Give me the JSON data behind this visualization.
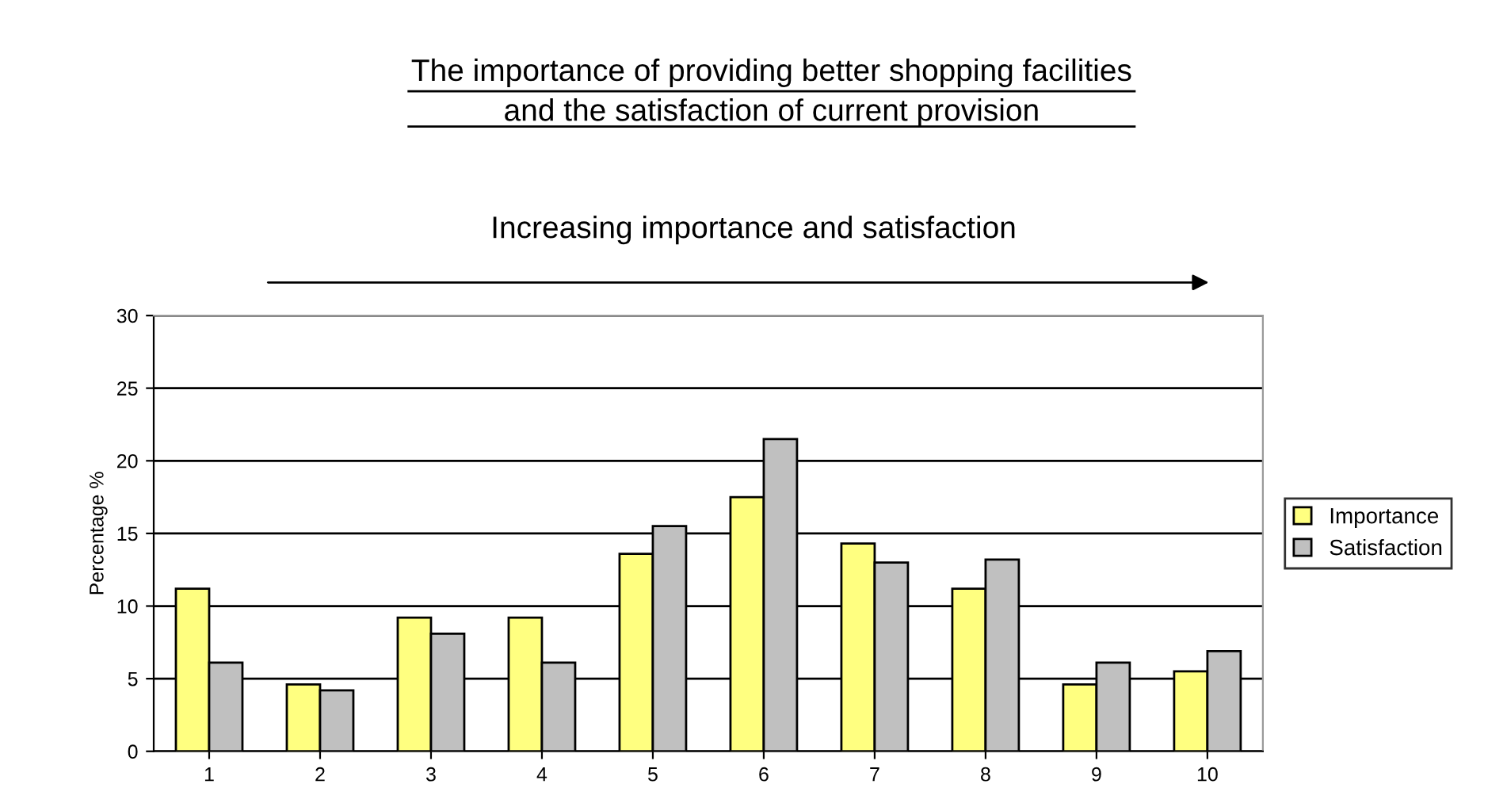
{
  "chart_data": {
    "type": "bar",
    "title": "The importance of providing better shopping facilities\nand the satisfaction of current provision",
    "subtitle": "Increasing importance and satisfaction",
    "ylabel": "Percentage %",
    "categories": [
      "1",
      "2",
      "3",
      "4",
      "5",
      "6",
      "7",
      "8",
      "9",
      "10"
    ],
    "series": [
      {
        "name": "Importance",
        "color": "#ffff80",
        "values": [
          11.2,
          4.6,
          9.2,
          9.2,
          13.6,
          17.5,
          14.3,
          11.2,
          4.6,
          5.5
        ]
      },
      {
        "name": "Satisfaction",
        "color": "#c0c0c0",
        "values": [
          6.1,
          4.2,
          8.1,
          6.1,
          15.5,
          21.5,
          13.0,
          13.2,
          6.1,
          6.9
        ]
      }
    ],
    "ylim": [
      0,
      30
    ],
    "yticks": [
      0,
      5,
      10,
      15,
      20,
      25,
      30
    ],
    "grid": "y",
    "legend": "right"
  }
}
